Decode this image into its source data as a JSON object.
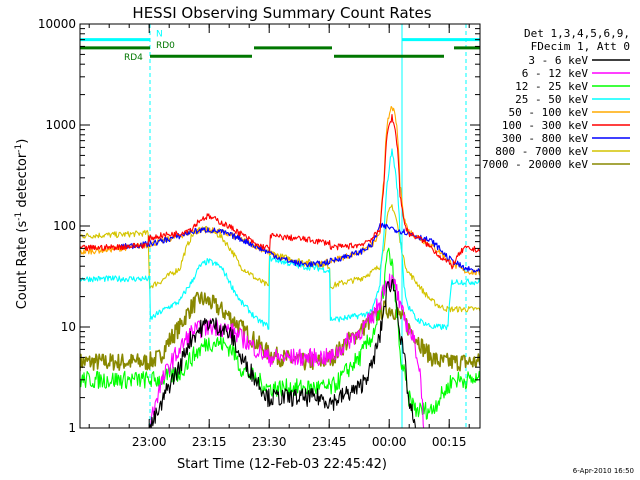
{
  "chart_data": {
    "type": "line",
    "title": "HESSI Observing Summary Count Rates",
    "xlabel": "Start Time (12-Feb-03 22:45:42)",
    "ylabel_main": "Count Rate (s",
    "ylabel_sup1": "-1",
    "ylabel_mid": " detector",
    "ylabel_sup2": "-1",
    "ylabel_end": ")",
    "x_unit": "minutes since 22:45:42",
    "xlim": [
      0,
      100
    ],
    "ylim": [
      1,
      10000
    ],
    "yscale": "log",
    "x_ticks": [
      {
        "value": 17.3,
        "label": "23:00"
      },
      {
        "value": 32.3,
        "label": "23:15"
      },
      {
        "value": 47.3,
        "label": "23:30"
      },
      {
        "value": 62.3,
        "label": "23:45"
      },
      {
        "value": 77.3,
        "label": "00:00"
      },
      {
        "value": 92.3,
        "label": "00:15"
      }
    ],
    "y_ticks": [
      {
        "value": 1,
        "label": "1"
      },
      {
        "value": 10,
        "label": "10"
      },
      {
        "value": 100,
        "label": "100"
      },
      {
        "value": 1000,
        "label": "1000"
      },
      {
        "value": 10000,
        "label": "10000"
      }
    ],
    "legend_header": [
      "Det 1,3,4,5,6,9,",
      "FDecim 1, Att 0"
    ],
    "series": [
      {
        "name": "3 - 6 keV",
        "color": "#000000",
        "x": [
          0,
          17,
          17.5,
          20,
          25,
          28,
          32,
          35,
          38,
          40,
          44,
          47,
          47.5,
          50,
          55,
          60,
          63,
          65,
          70,
          73,
          75,
          76,
          77,
          78,
          79,
          80,
          82,
          84,
          86,
          88,
          90,
          92,
          93,
          96,
          100
        ],
        "y": [
          0.8,
          0.8,
          1,
          1.5,
          4,
          8,
          11,
          10,
          8,
          5,
          3,
          2,
          2,
          2,
          2,
          2,
          1.8,
          2,
          2.5,
          4,
          8,
          15,
          25,
          28,
          20,
          8,
          2,
          0.8,
          0.8,
          0.8,
          0.8,
          0.8,
          0.8,
          0.8,
          0.8
        ]
      },
      {
        "name": "6 - 12 keV",
        "color": "#ff00ff",
        "x": [
          0,
          17,
          17.5,
          20,
          25,
          28,
          32,
          35,
          38,
          40,
          44,
          47,
          47.5,
          50,
          55,
          60,
          63,
          65,
          70,
          73,
          75,
          76,
          77,
          78,
          79,
          80,
          82,
          83,
          84,
          86,
          90,
          93,
          96,
          100
        ],
        "y": [
          0.8,
          0.8,
          1,
          2.5,
          6,
          9,
          10,
          10,
          9,
          8,
          6,
          5,
          5,
          5,
          5,
          5,
          5,
          6,
          9,
          12,
          18,
          25,
          30,
          28,
          25,
          15,
          10,
          8,
          6,
          0.8,
          0.8,
          0.8,
          0.8,
          0.8
        ]
      },
      {
        "name": "12 - 25 keV",
        "color": "#00ff00",
        "x": [
          0,
          17,
          17.5,
          20,
          25,
          28,
          32,
          35,
          38,
          40,
          44,
          47,
          47.5,
          50,
          55,
          60,
          63,
          65,
          70,
          73,
          75,
          76,
          77,
          78,
          79,
          80,
          82,
          84,
          86,
          88,
          90,
          92,
          93,
          96,
          100
        ],
        "y": [
          3,
          3,
          3,
          3,
          3.5,
          5,
          7,
          7,
          6,
          4,
          3,
          2.5,
          2.5,
          2.5,
          2.5,
          2.5,
          2.5,
          3,
          5,
          8,
          13,
          25,
          55,
          40,
          15,
          5,
          2,
          1.5,
          1.5,
          1.5,
          2,
          2.5,
          3,
          3,
          3
        ]
      },
      {
        "name": "25 - 50 keV",
        "color": "#00ffff",
        "x": [
          0,
          17.5,
          17.6,
          20,
          25,
          28,
          30,
          32,
          35,
          38,
          40,
          44,
          47.2,
          47.3,
          50,
          55,
          60,
          62.5,
          62.6,
          65,
          70,
          73,
          75,
          76,
          77,
          78,
          79,
          80,
          81,
          82,
          84,
          86,
          88,
          90,
          92,
          93,
          96,
          100
        ],
        "y": [
          30,
          30,
          12,
          14,
          18,
          28,
          40,
          45,
          40,
          25,
          18,
          12,
          10,
          48,
          45,
          40,
          38,
          36,
          12,
          12,
          13,
          14,
          25,
          80,
          300,
          560,
          300,
          80,
          25,
          16,
          12,
          11,
          10,
          10,
          10,
          28,
          28,
          28
        ]
      },
      {
        "name": "50 - 100 keV",
        "color": "#ffaa00",
        "x": [
          0,
          10,
          17,
          20,
          25,
          28,
          30,
          32,
          35,
          40,
          45,
          50,
          55,
          60,
          62,
          65,
          70,
          73,
          75,
          76,
          77,
          78,
          79,
          80,
          81,
          82,
          85,
          90,
          93,
          96,
          100
        ],
        "y": [
          55,
          60,
          65,
          70,
          80,
          88,
          90,
          92,
          88,
          75,
          60,
          48,
          42,
          42,
          44,
          48,
          55,
          65,
          80,
          300,
          1100,
          1550,
          1100,
          250,
          120,
          90,
          75,
          55,
          42,
          36,
          34
        ]
      },
      {
        "name": "100 - 300 keV",
        "color": "#ff0000",
        "x": [
          0,
          10,
          17,
          17.2,
          20,
          25,
          28,
          30,
          32,
          35,
          40,
          44,
          47.5,
          47.6,
          50,
          55,
          60,
          62.4,
          62.5,
          65,
          70,
          73,
          75,
          76,
          77,
          78,
          79,
          80,
          81,
          82,
          85,
          90,
          93,
          96,
          100
        ],
        "y": [
          60,
          62,
          65,
          75,
          80,
          85,
          95,
          115,
          125,
          110,
          85,
          65,
          60,
          80,
          78,
          75,
          70,
          68,
          62,
          62,
          65,
          75,
          90,
          250,
          900,
          1200,
          800,
          200,
          110,
          85,
          75,
          50,
          40,
          60,
          58
        ]
      },
      {
        "name": "300 - 800 keV",
        "color": "#0000ff",
        "x": [
          10,
          17,
          20,
          25,
          28,
          30,
          32,
          35,
          40,
          45,
          50,
          55,
          60,
          62,
          65,
          70,
          73,
          74,
          75,
          77,
          79,
          81,
          84,
          88,
          92,
          96,
          100
        ],
        "y": [
          62,
          66,
          70,
          80,
          88,
          90,
          92,
          88,
          75,
          60,
          48,
          42,
          42,
          44,
          48,
          55,
          65,
          80,
          100,
          98,
          92,
          88,
          80,
          70,
          48,
          38,
          35
        ]
      },
      {
        "name": "800 - 7000 keV",
        "color": "#d4c400",
        "x": [
          0,
          10,
          17,
          17.3,
          20,
          25,
          28,
          30,
          32,
          35,
          40,
          44,
          47.3,
          47.4,
          50,
          55,
          60,
          62.4,
          62.5,
          65,
          70,
          73,
          75,
          76,
          77,
          78,
          79,
          80,
          81,
          82,
          84,
          86,
          88,
          90,
          92,
          93,
          96,
          100
        ],
        "y": [
          80,
          82,
          85,
          25,
          28,
          38,
          80,
          95,
          92,
          80,
          40,
          30,
          25,
          55,
          50,
          45,
          42,
          40,
          25,
          27,
          30,
          35,
          40,
          60,
          130,
          160,
          120,
          70,
          45,
          35,
          28,
          22,
          18,
          16,
          15,
          15,
          15,
          15
        ]
      },
      {
        "name": "7000 - 20000 keV",
        "color": "#888800",
        "x": [
          0,
          17,
          20,
          25,
          28,
          30,
          32,
          35,
          40,
          44,
          47,
          50,
          55,
          60,
          63,
          65,
          70,
          73,
          75,
          76,
          77,
          78,
          79,
          80,
          82,
          84,
          86,
          88,
          90,
          92,
          96,
          100
        ],
        "y": [
          4.5,
          4.5,
          5,
          10,
          16,
          19,
          18,
          15,
          10,
          7,
          5.5,
          5,
          4.5,
          4.5,
          5,
          6,
          9,
          12,
          14,
          15,
          15,
          15,
          14,
          13,
          10,
          8,
          6,
          5,
          4.5,
          4.5,
          4.5,
          4.5
        ]
      }
    ],
    "flag_bars": [
      {
        "label": "N",
        "color": "#00ffff",
        "level": 7000,
        "segments": [
          [
            0,
            17.5
          ],
          [
            80.5,
            100
          ]
        ]
      },
      {
        "label": "RD0",
        "color": "#007700",
        "level": 5800,
        "segments": [
          [
            0,
            17.5
          ],
          [
            43.5,
            63
          ],
          [
            93.5,
            100
          ]
        ]
      },
      {
        "label": "RD4",
        "color": "#007700",
        "level": 4800,
        "segments": [
          [
            17.5,
            43
          ],
          [
            63.5,
            91
          ]
        ]
      }
    ],
    "vlines": [
      {
        "x": 0,
        "style": "solid"
      },
      {
        "x": 80.5,
        "style": "solid"
      },
      {
        "x": 17.5,
        "style": "dashed"
      },
      {
        "x": 96.5,
        "style": "dashed"
      }
    ],
    "footer": "6-Apr-2010 16:50"
  }
}
